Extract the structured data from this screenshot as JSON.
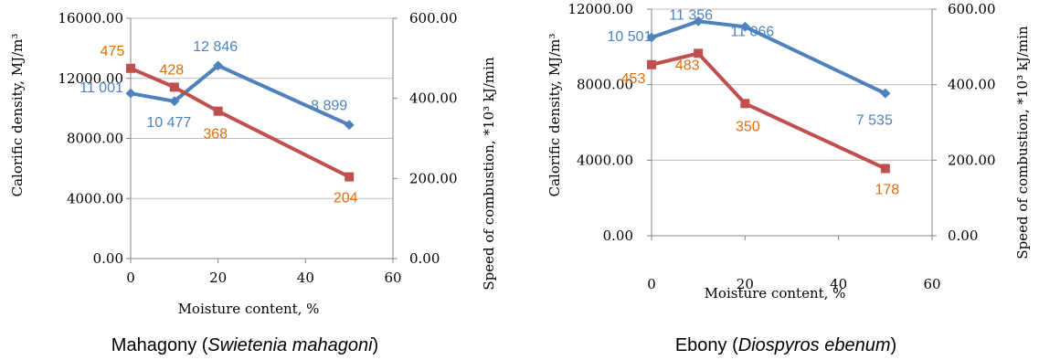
{
  "colors": {
    "blue_series": "#4F81BD",
    "red_series": "#C0504D",
    "blue_label": "#4F81BD",
    "red_label": "#E46C0A",
    "axis": "#868686",
    "grid": "#BFBFBF"
  },
  "chart_data": [
    {
      "type": "line",
      "caption": {
        "prefix": "Mahagony  (",
        "italic": "Swietenia mahagoni",
        "suffix": ")"
      },
      "xlabel": "Moisture content, %",
      "ylabel_left": "Calorific density, MJ/m³",
      "ylabel_right": "Speed of combustion, *10³ kJ/min",
      "xlim": [
        0,
        60
      ],
      "x_ticks": [
        "0",
        "20",
        "40",
        "60"
      ],
      "y_left_lim": [
        0,
        16000
      ],
      "y_left_ticks": [
        "0.00",
        "4000.00",
        "8000.00",
        "12000.00",
        "16000.00"
      ],
      "y_right_lim": [
        0,
        600
      ],
      "y_right_ticks": [
        "0.00",
        "200.00",
        "400.00",
        "600.00"
      ],
      "grid": "horizontal",
      "series": [
        {
          "axis": "left",
          "x": [
            0,
            10,
            20,
            50
          ],
          "y": [
            11001,
            10477,
            12846,
            8899
          ],
          "labels": [
            "11 001",
            "10 477",
            "12 846",
            "8 899"
          ]
        },
        {
          "axis": "right",
          "x": [
            0,
            10,
            20,
            50
          ],
          "y": [
            475,
            428,
            368,
            204
          ],
          "labels": [
            "475",
            "428",
            "368",
            "204"
          ]
        }
      ]
    },
    {
      "type": "line",
      "caption": {
        "prefix": "Ebony (",
        "italic": "Diospyros ebenum",
        "suffix": ")"
      },
      "xlabel": "Moisture content, %",
      "ylabel_left": "Calorific density, MJ/m³",
      "ylabel_right": "Speed of combustion, *10³ kJ/min",
      "xlim": [
        0,
        60
      ],
      "x_ticks": [
        "0",
        "20",
        "40",
        "60"
      ],
      "y_left_lim": [
        0,
        12000
      ],
      "y_left_ticks": [
        "0.00",
        "4000.00",
        "8000.00",
        "12000.00"
      ],
      "y_right_lim": [
        0,
        600
      ],
      "y_right_ticks": [
        "0.00",
        "200.00",
        "400.00",
        "600.00"
      ],
      "grid": "horizontal",
      "series": [
        {
          "axis": "left",
          "x": [
            0,
            10,
            20,
            50
          ],
          "y": [
            10501,
            11356,
            11066,
            7535
          ],
          "labels": [
            "10 501",
            "11 356",
            "11 066",
            "7 535"
          ]
        },
        {
          "axis": "right",
          "x": [
            0,
            10,
            20,
            50
          ],
          "y": [
            453,
            483,
            350,
            178
          ],
          "labels": [
            "453",
            "483",
            "350",
            "178"
          ]
        }
      ]
    }
  ]
}
